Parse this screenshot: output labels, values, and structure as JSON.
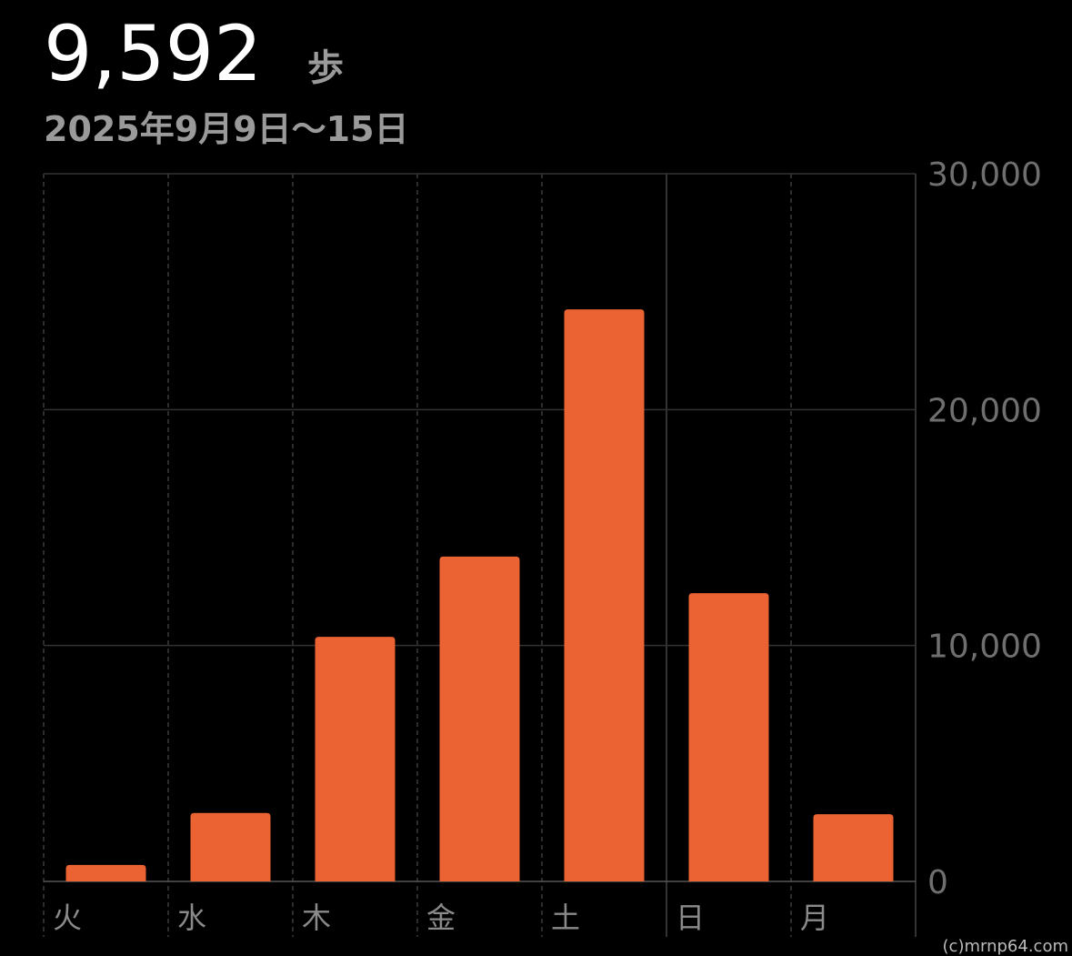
{
  "chart_data": {
    "type": "bar",
    "title": "9,592",
    "unit": "歩",
    "subtitle": "2025年9月9日〜15日",
    "categories": [
      "火",
      "水",
      "木",
      "金",
      "土",
      "日",
      "月"
    ],
    "values": [
      700,
      2900,
      10370,
      13770,
      24250,
      12220,
      2850
    ],
    "color": "#eb6233",
    "ylim": [
      0,
      30000
    ],
    "yticks": [
      0,
      {
        "value": 10000,
        "label": "10,000"
      },
      {
        "value": 20000,
        "label": "20,000"
      },
      {
        "value": 30000,
        "label": "30,000"
      }
    ],
    "grid": true,
    "watermark": "(c)mrnp64.com"
  }
}
